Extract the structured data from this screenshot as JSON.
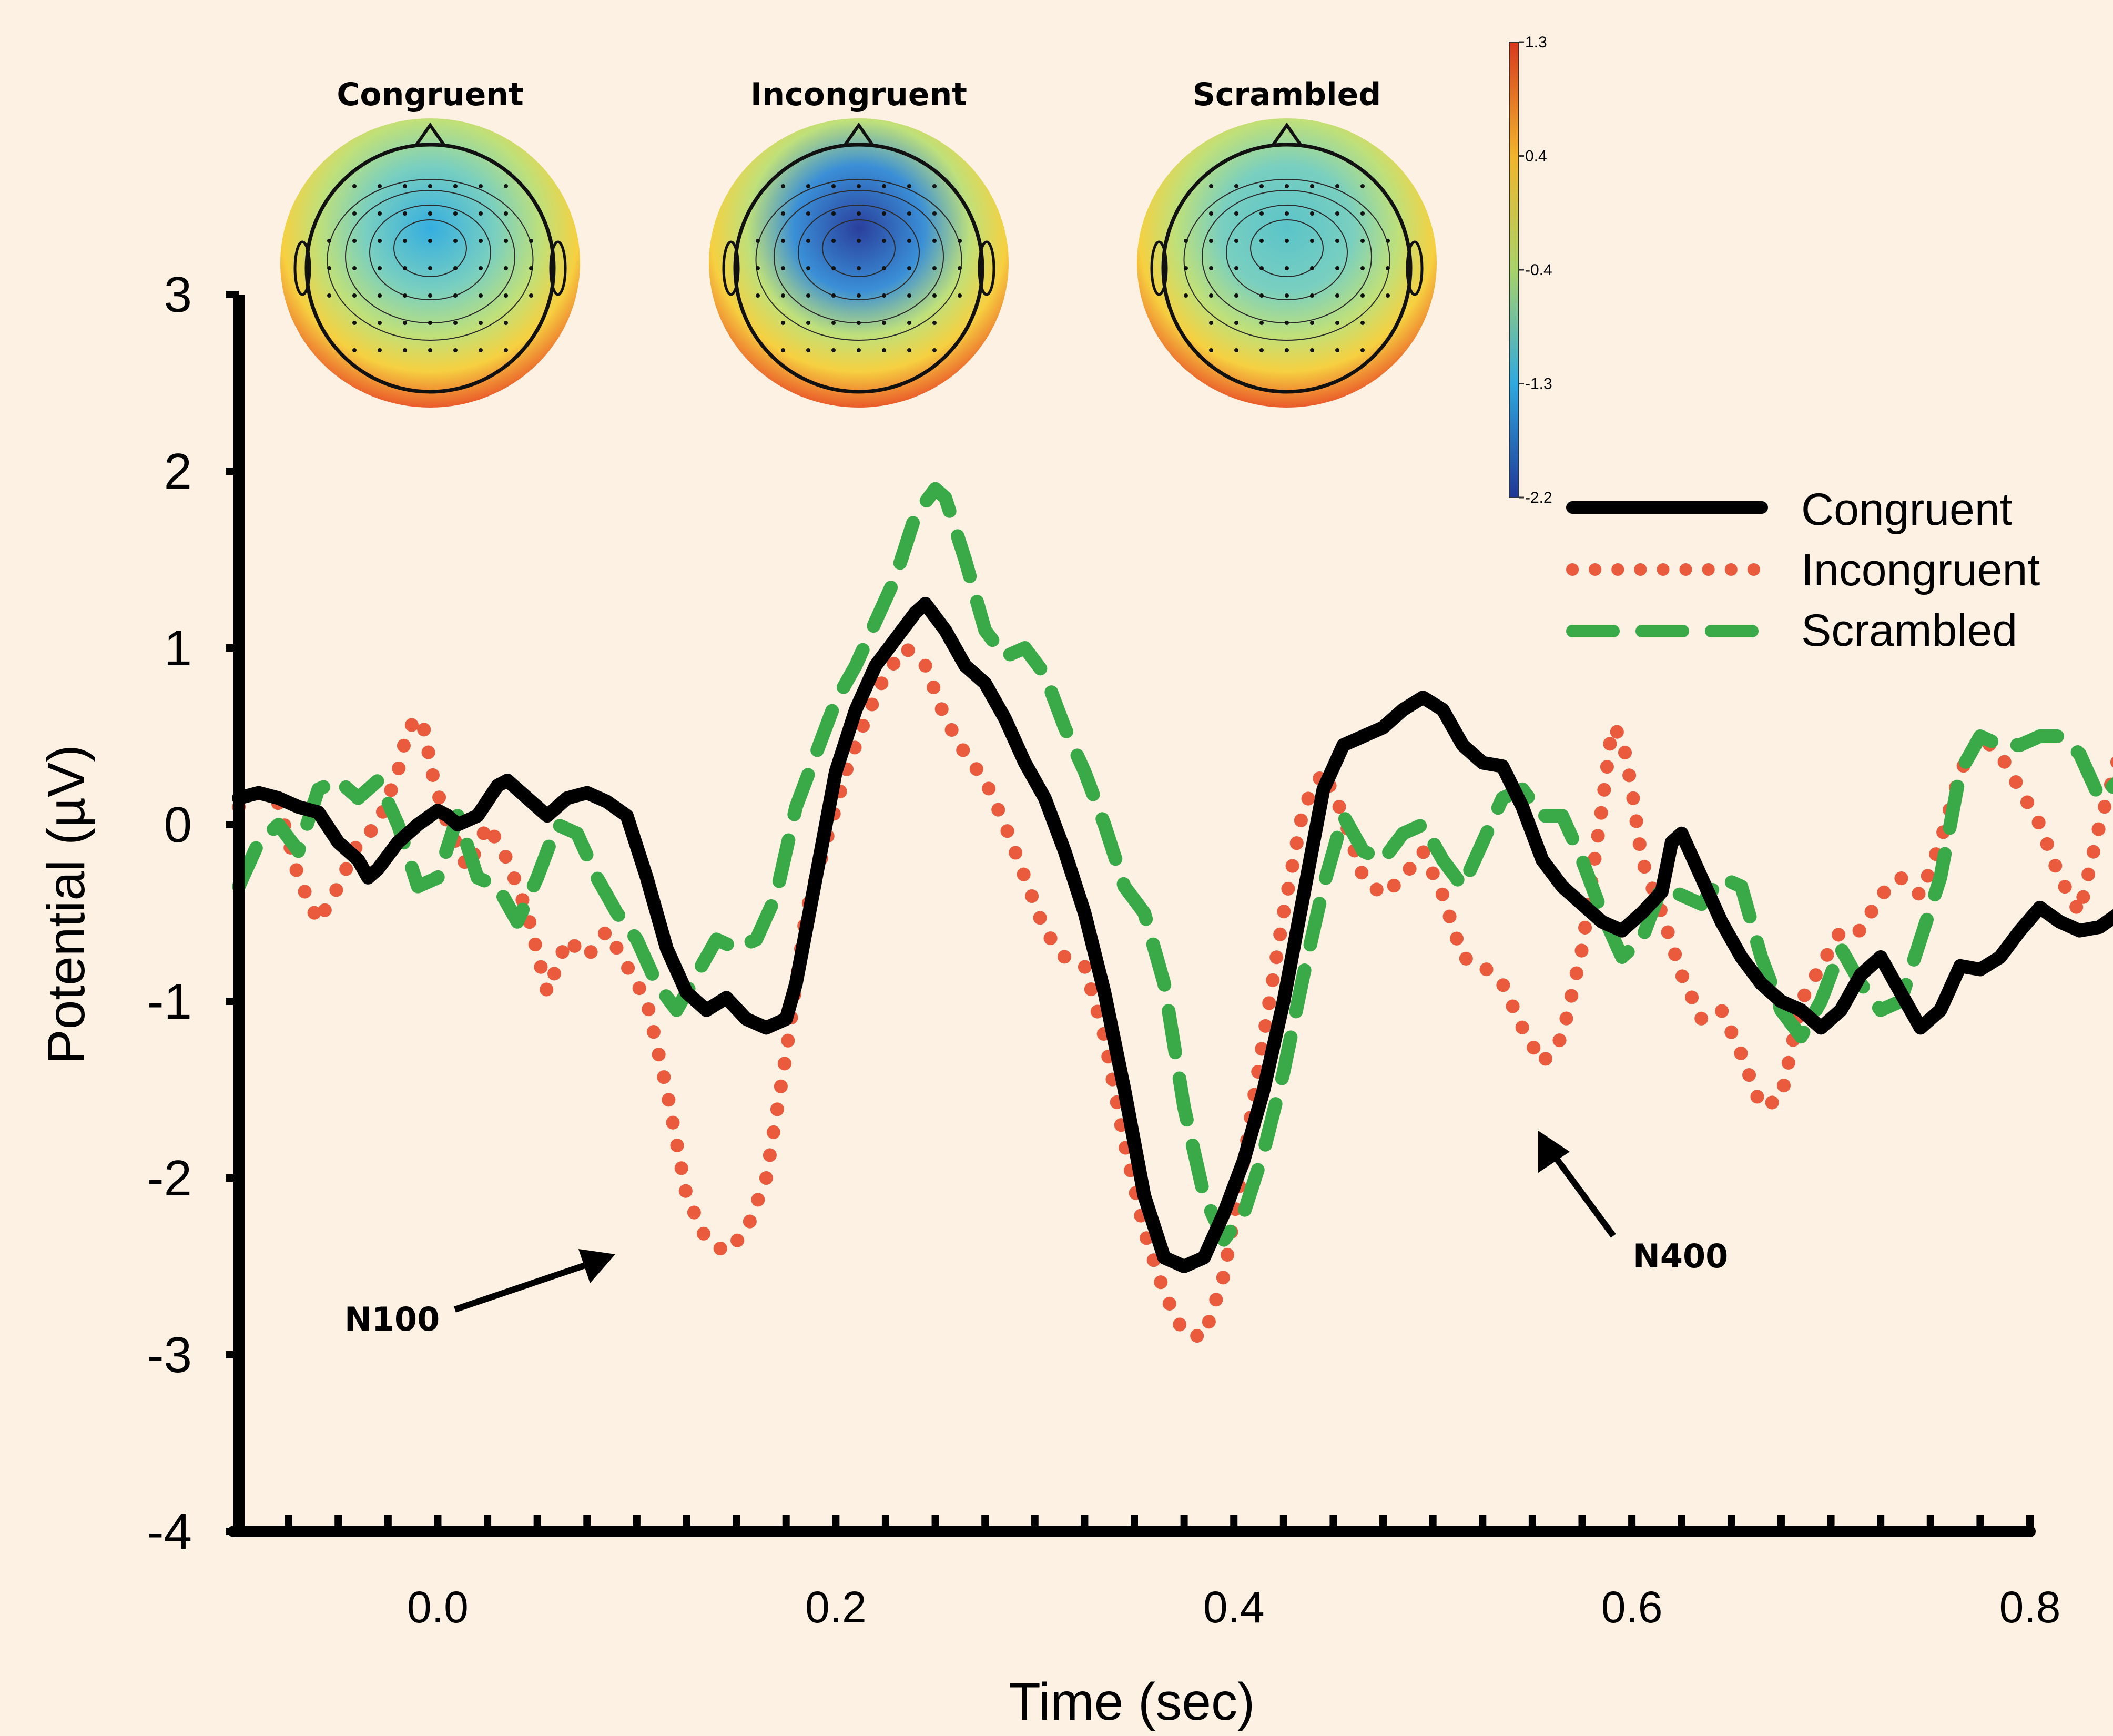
{
  "chart_data": {
    "type": "line",
    "title": "",
    "xlabel": "Time (sec)",
    "ylabel": "Potential (µV)",
    "xlim": [
      -0.1,
      0.8
    ],
    "ylim": [
      -4,
      3
    ],
    "xticks": [
      0.0,
      0.2,
      0.4,
      0.6,
      0.8
    ],
    "xtick_labels": [
      "0.0",
      "0.2",
      "0.4",
      "0.6",
      "0.8"
    ],
    "yticks": [
      3,
      2,
      1,
      0,
      -1,
      -2,
      -3,
      -4
    ],
    "ytick_labels": [
      "3",
      "2",
      "1",
      "0",
      "-1",
      "-2",
      "-3",
      "-4"
    ],
    "legend_position": "top-right",
    "series": [
      {
        "name": "Congruent",
        "color": "#000000",
        "style": "solid",
        "points": [
          [
            -0.1,
            0.15
          ],
          [
            -0.09,
            0.18
          ],
          [
            -0.08,
            0.15
          ],
          [
            -0.07,
            0.1
          ],
          [
            -0.06,
            0.07
          ],
          [
            -0.05,
            -0.1
          ],
          [
            -0.04,
            -0.2
          ],
          [
            -0.035,
            -0.3
          ],
          [
            -0.03,
            -0.25
          ],
          [
            -0.02,
            -0.1
          ],
          [
            -0.01,
            0.0
          ],
          [
            0.0,
            0.08
          ],
          [
            0.005,
            0.05
          ],
          [
            0.01,
            0.0
          ],
          [
            0.02,
            0.05
          ],
          [
            0.03,
            0.22
          ],
          [
            0.035,
            0.25
          ],
          [
            0.04,
            0.2
          ],
          [
            0.05,
            0.1
          ],
          [
            0.055,
            0.05
          ],
          [
            0.065,
            0.15
          ],
          [
            0.075,
            0.18
          ],
          [
            0.085,
            0.13
          ],
          [
            0.095,
            0.05
          ],
          [
            0.105,
            -0.3
          ],
          [
            0.115,
            -0.7
          ],
          [
            0.125,
            -0.95
          ],
          [
            0.135,
            -1.05
          ],
          [
            0.145,
            -0.98
          ],
          [
            0.155,
            -1.1
          ],
          [
            0.165,
            -1.15
          ],
          [
            0.175,
            -1.1
          ],
          [
            0.18,
            -0.9
          ],
          [
            0.19,
            -0.3
          ],
          [
            0.2,
            0.3
          ],
          [
            0.21,
            0.65
          ],
          [
            0.22,
            0.9
          ],
          [
            0.23,
            1.05
          ],
          [
            0.24,
            1.2
          ],
          [
            0.245,
            1.25
          ],
          [
            0.255,
            1.1
          ],
          [
            0.265,
            0.9
          ],
          [
            0.275,
            0.8
          ],
          [
            0.285,
            0.6
          ],
          [
            0.295,
            0.35
          ],
          [
            0.305,
            0.15
          ],
          [
            0.315,
            -0.15
          ],
          [
            0.325,
            -0.5
          ],
          [
            0.335,
            -0.95
          ],
          [
            0.345,
            -1.5
          ],
          [
            0.355,
            -2.1
          ],
          [
            0.365,
            -2.45
          ],
          [
            0.375,
            -2.5
          ],
          [
            0.385,
            -2.45
          ],
          [
            0.395,
            -2.2
          ],
          [
            0.405,
            -1.9
          ],
          [
            0.415,
            -1.5
          ],
          [
            0.425,
            -1.0
          ],
          [
            0.435,
            -0.4
          ],
          [
            0.445,
            0.2
          ],
          [
            0.455,
            0.45
          ],
          [
            0.465,
            0.5
          ],
          [
            0.475,
            0.55
          ],
          [
            0.485,
            0.65
          ],
          [
            0.495,
            0.72
          ],
          [
            0.505,
            0.65
          ],
          [
            0.515,
            0.45
          ],
          [
            0.525,
            0.35
          ],
          [
            0.535,
            0.33
          ],
          [
            0.545,
            0.1
          ],
          [
            0.555,
            -0.2
          ],
          [
            0.565,
            -0.35
          ],
          [
            0.575,
            -0.45
          ],
          [
            0.585,
            -0.55
          ],
          [
            0.595,
            -0.6
          ],
          [
            0.605,
            -0.5
          ],
          [
            0.615,
            -0.38
          ],
          [
            0.62,
            -0.1
          ],
          [
            0.625,
            -0.05
          ],
          [
            0.635,
            -0.3
          ],
          [
            0.645,
            -0.55
          ],
          [
            0.655,
            -0.75
          ],
          [
            0.665,
            -0.9
          ],
          [
            0.675,
            -1.0
          ],
          [
            0.685,
            -1.05
          ],
          [
            0.695,
            -1.15
          ],
          [
            0.705,
            -1.05
          ],
          [
            0.715,
            -0.85
          ],
          [
            0.725,
            -0.75
          ],
          [
            0.735,
            -0.95
          ],
          [
            0.745,
            -1.15
          ],
          [
            0.755,
            -1.05
          ],
          [
            0.765,
            -0.8
          ],
          [
            0.775,
            -0.82
          ],
          [
            0.785,
            -0.75
          ],
          [
            0.795,
            -0.6
          ],
          [
            0.805,
            -0.47
          ],
          [
            0.815,
            -0.55
          ],
          [
            0.825,
            -0.6
          ],
          [
            0.835,
            -0.58
          ],
          [
            0.845,
            -0.5
          ]
        ]
      },
      {
        "name": "Incongruent",
        "color": "#ea5a3d",
        "style": "dotted",
        "points": [
          [
            -0.1,
            0.1
          ],
          [
            -0.09,
            0.18
          ],
          [
            -0.08,
            0.12
          ],
          [
            -0.07,
            -0.3
          ],
          [
            -0.06,
            -0.55
          ],
          [
            -0.05,
            -0.35
          ],
          [
            -0.04,
            -0.1
          ],
          [
            -0.03,
            0.0
          ],
          [
            -0.02,
            0.3
          ],
          [
            -0.015,
            0.55
          ],
          [
            -0.008,
            0.6
          ],
          [
            -0.002,
            0.25
          ],
          [
            0.005,
            0.0
          ],
          [
            0.015,
            -0.25
          ],
          [
            0.025,
            0.0
          ],
          [
            0.035,
            -0.2
          ],
          [
            0.045,
            -0.5
          ],
          [
            0.055,
            -0.95
          ],
          [
            0.065,
            -0.65
          ],
          [
            0.075,
            -0.75
          ],
          [
            0.085,
            -0.6
          ],
          [
            0.095,
            -0.8
          ],
          [
            0.105,
            -1.0
          ],
          [
            0.115,
            -1.5
          ],
          [
            0.125,
            -2.1
          ],
          [
            0.135,
            -2.35
          ],
          [
            0.145,
            -2.42
          ],
          [
            0.155,
            -2.3
          ],
          [
            0.165,
            -2.0
          ],
          [
            0.175,
            -1.3
          ],
          [
            0.185,
            -0.5
          ],
          [
            0.195,
            -0.1
          ],
          [
            0.205,
            0.3
          ],
          [
            0.215,
            0.6
          ],
          [
            0.225,
            0.85
          ],
          [
            0.235,
            1.0
          ],
          [
            0.245,
            0.9
          ],
          [
            0.255,
            0.6
          ],
          [
            0.265,
            0.4
          ],
          [
            0.275,
            0.25
          ],
          [
            0.285,
            0.0
          ],
          [
            0.295,
            -0.3
          ],
          [
            0.305,
            -0.6
          ],
          [
            0.315,
            -0.75
          ],
          [
            0.325,
            -0.8
          ],
          [
            0.335,
            -1.2
          ],
          [
            0.345,
            -1.8
          ],
          [
            0.355,
            -2.3
          ],
          [
            0.365,
            -2.65
          ],
          [
            0.375,
            -2.88
          ],
          [
            0.385,
            -2.9
          ],
          [
            0.395,
            -2.55
          ],
          [
            0.405,
            -1.9
          ],
          [
            0.415,
            -1.2
          ],
          [
            0.425,
            -0.5
          ],
          [
            0.435,
            0.1
          ],
          [
            0.445,
            0.3
          ],
          [
            0.455,
            0.05
          ],
          [
            0.465,
            -0.3
          ],
          [
            0.475,
            -0.4
          ],
          [
            0.485,
            -0.3
          ],
          [
            0.495,
            -0.15
          ],
          [
            0.505,
            -0.4
          ],
          [
            0.515,
            -0.75
          ],
          [
            0.525,
            -0.8
          ],
          [
            0.535,
            -0.9
          ],
          [
            0.545,
            -1.15
          ],
          [
            0.555,
            -1.35
          ],
          [
            0.565,
            -1.2
          ],
          [
            0.575,
            -0.7
          ],
          [
            0.585,
            0.1
          ],
          [
            0.59,
            0.55
          ],
          [
            0.595,
            0.5
          ],
          [
            0.6,
            0.2
          ],
          [
            0.605,
            -0.2
          ],
          [
            0.615,
            -0.5
          ],
          [
            0.625,
            -0.85
          ],
          [
            0.635,
            -1.1
          ],
          [
            0.645,
            -1.05
          ],
          [
            0.655,
            -1.3
          ],
          [
            0.665,
            -1.6
          ],
          [
            0.675,
            -1.55
          ],
          [
            0.685,
            -1.0
          ],
          [
            0.695,
            -0.8
          ],
          [
            0.705,
            -0.6
          ],
          [
            0.715,
            -0.6
          ],
          [
            0.725,
            -0.4
          ],
          [
            0.735,
            -0.3
          ],
          [
            0.745,
            -0.4
          ],
          [
            0.755,
            -0.1
          ],
          [
            0.765,
            0.3
          ],
          [
            0.775,
            0.5
          ],
          [
            0.785,
            0.4
          ],
          [
            0.795,
            0.2
          ],
          [
            0.805,
            0.0
          ],
          [
            0.815,
            -0.3
          ],
          [
            0.825,
            -0.5
          ],
          [
            0.835,
            0.0
          ],
          [
            0.845,
            0.4
          ]
        ]
      },
      {
        "name": "Scrambled",
        "color": "#3aaa48",
        "style": "dashed",
        "points": [
          [
            -0.1,
            -0.35
          ],
          [
            -0.09,
            -0.1
          ],
          [
            -0.08,
            0.0
          ],
          [
            -0.07,
            -0.15
          ],
          [
            -0.06,
            0.2
          ],
          [
            -0.05,
            0.25
          ],
          [
            -0.04,
            0.15
          ],
          [
            -0.03,
            0.25
          ],
          [
            -0.02,
            0.0
          ],
          [
            -0.01,
            -0.35
          ],
          [
            0.0,
            -0.3
          ],
          [
            0.01,
            0.05
          ],
          [
            0.02,
            -0.3
          ],
          [
            0.03,
            -0.35
          ],
          [
            0.04,
            -0.55
          ],
          [
            0.05,
            -0.3
          ],
          [
            0.06,
            0.0
          ],
          [
            0.07,
            -0.05
          ],
          [
            0.08,
            -0.3
          ],
          [
            0.09,
            -0.5
          ],
          [
            0.1,
            -0.65
          ],
          [
            0.11,
            -0.9
          ],
          [
            0.12,
            -1.05
          ],
          [
            0.13,
            -0.85
          ],
          [
            0.14,
            -0.65
          ],
          [
            0.15,
            -0.7
          ],
          [
            0.16,
            -0.65
          ],
          [
            0.17,
            -0.4
          ],
          [
            0.18,
            0.1
          ],
          [
            0.19,
            0.4
          ],
          [
            0.2,
            0.7
          ],
          [
            0.21,
            0.9
          ],
          [
            0.22,
            1.15
          ],
          [
            0.23,
            1.4
          ],
          [
            0.24,
            1.75
          ],
          [
            0.25,
            1.9
          ],
          [
            0.255,
            1.85
          ],
          [
            0.265,
            1.5
          ],
          [
            0.275,
            1.1
          ],
          [
            0.285,
            0.95
          ],
          [
            0.295,
            1.0
          ],
          [
            0.305,
            0.85
          ],
          [
            0.315,
            0.55
          ],
          [
            0.325,
            0.3
          ],
          [
            0.335,
            0.0
          ],
          [
            0.345,
            -0.35
          ],
          [
            0.355,
            -0.5
          ],
          [
            0.365,
            -0.9
          ],
          [
            0.375,
            -1.6
          ],
          [
            0.385,
            -2.1
          ],
          [
            0.395,
            -2.35
          ],
          [
            0.405,
            -2.2
          ],
          [
            0.415,
            -1.85
          ],
          [
            0.425,
            -1.4
          ],
          [
            0.435,
            -0.85
          ],
          [
            0.445,
            -0.35
          ],
          [
            0.455,
            0.05
          ],
          [
            0.465,
            -0.15
          ],
          [
            0.475,
            -0.2
          ],
          [
            0.485,
            -0.05
          ],
          [
            0.495,
            0.0
          ],
          [
            0.505,
            -0.2
          ],
          [
            0.515,
            -0.35
          ],
          [
            0.525,
            -0.1
          ],
          [
            0.535,
            0.15
          ],
          [
            0.545,
            0.2
          ],
          [
            0.555,
            0.05
          ],
          [
            0.565,
            0.05
          ],
          [
            0.575,
            -0.2
          ],
          [
            0.585,
            -0.5
          ],
          [
            0.595,
            -0.75
          ],
          [
            0.605,
            -0.65
          ],
          [
            0.615,
            -0.35
          ],
          [
            0.625,
            -0.4
          ],
          [
            0.635,
            -0.45
          ],
          [
            0.645,
            -0.3
          ],
          [
            0.655,
            -0.35
          ],
          [
            0.665,
            -0.75
          ],
          [
            0.675,
            -1.05
          ],
          [
            0.685,
            -1.2
          ],
          [
            0.695,
            -1.0
          ],
          [
            0.705,
            -0.7
          ],
          [
            0.715,
            -0.9
          ],
          [
            0.725,
            -1.05
          ],
          [
            0.735,
            -1.0
          ],
          [
            0.745,
            -0.65
          ],
          [
            0.755,
            -0.3
          ],
          [
            0.765,
            0.3
          ],
          [
            0.775,
            0.5
          ],
          [
            0.785,
            0.45
          ],
          [
            0.795,
            0.45
          ],
          [
            0.805,
            0.5
          ],
          [
            0.815,
            0.5
          ],
          [
            0.825,
            0.4
          ],
          [
            0.835,
            0.15
          ],
          [
            0.845,
            0.25
          ]
        ]
      }
    ],
    "annotations": [
      {
        "text": "N100",
        "points_to": [
          0.12,
          -2.3
        ]
      },
      {
        "text": "N400",
        "points_to": [
          0.555,
          -1.55
        ]
      }
    ]
  },
  "topomaps": {
    "maps": [
      {
        "title": "Congruent",
        "center_color": "#35aee0"
      },
      {
        "title": "Incongruent",
        "center_color": "#2a3f9d"
      },
      {
        "title": "Scrambled",
        "center_color": "#5bc4c9"
      }
    ],
    "colorbar": {
      "labels": [
        "1.3",
        "0.4",
        "-0.4",
        "-1.3",
        "-2.2"
      ],
      "colors": [
        "#d73a1e",
        "#f2b52c",
        "#a9d36a",
        "#2fa9df",
        "#1f3794"
      ]
    }
  }
}
